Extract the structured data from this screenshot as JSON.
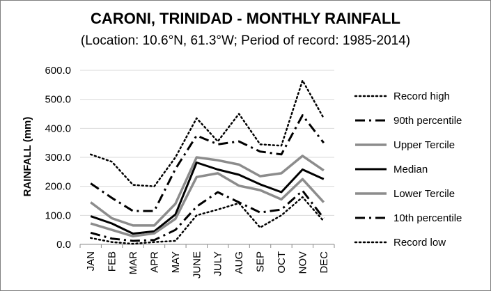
{
  "chart_data": {
    "type": "line",
    "title": "CARONI, TRINIDAD - MONTHLY RAINFALL",
    "subtitle": "(Location: 10.6°N, 61.3°W; Period of record: 1985-2014)",
    "xlabel": "",
    "ylabel": "RAINFALL (mm)",
    "ylim": [
      0,
      600
    ],
    "yticks": [
      "0.0",
      "100.0",
      "200.0",
      "300.0",
      "400.0",
      "500.0",
      "600.0"
    ],
    "grid": true,
    "legend_position": "right",
    "categories": [
      "JAN",
      "FEB",
      "MAR",
      "APR",
      "MAY",
      "JUNE",
      "JULY",
      "AUG",
      "SEP",
      "OCT",
      "NOV",
      "DEC"
    ],
    "series": [
      {
        "name": "Record high",
        "color": "#000000",
        "dash": "dotted",
        "width": 2.5,
        "values": [
          310,
          285,
          205,
          200,
          300,
          435,
          355,
          450,
          345,
          340,
          565,
          435
        ]
      },
      {
        "name": "90th percentile",
        "color": "#000000",
        "dash": "dashdot",
        "width": 3,
        "values": [
          210,
          160,
          115,
          115,
          260,
          375,
          345,
          355,
          320,
          310,
          445,
          350
        ]
      },
      {
        "name": "Upper Tercile",
        "color": "#8c8c8c",
        "dash": "solid",
        "width": 3.5,
        "values": [
          145,
          90,
          65,
          65,
          140,
          300,
          290,
          275,
          235,
          245,
          305,
          255
        ]
      },
      {
        "name": "Median",
        "color": "#000000",
        "dash": "solid",
        "width": 3,
        "values": [
          97,
          72,
          37,
          45,
          103,
          282,
          258,
          240,
          207,
          180,
          258,
          225
        ]
      },
      {
        "name": "Lower Tercile",
        "color": "#8c8c8c",
        "dash": "solid",
        "width": 3.5,
        "values": [
          72,
          50,
          28,
          38,
          88,
          232,
          245,
          202,
          187,
          155,
          225,
          145
        ]
      },
      {
        "name": "10th percentile",
        "color": "#000000",
        "dash": "dashdot",
        "width": 3,
        "values": [
          40,
          20,
          12,
          15,
          50,
          130,
          180,
          145,
          110,
          120,
          185,
          90
        ]
      },
      {
        "name": "Record low",
        "color": "#000000",
        "dash": "dotted",
        "width": 2.5,
        "values": [
          22,
          8,
          2,
          8,
          12,
          100,
          120,
          142,
          58,
          100,
          163,
          80
        ]
      }
    ]
  }
}
